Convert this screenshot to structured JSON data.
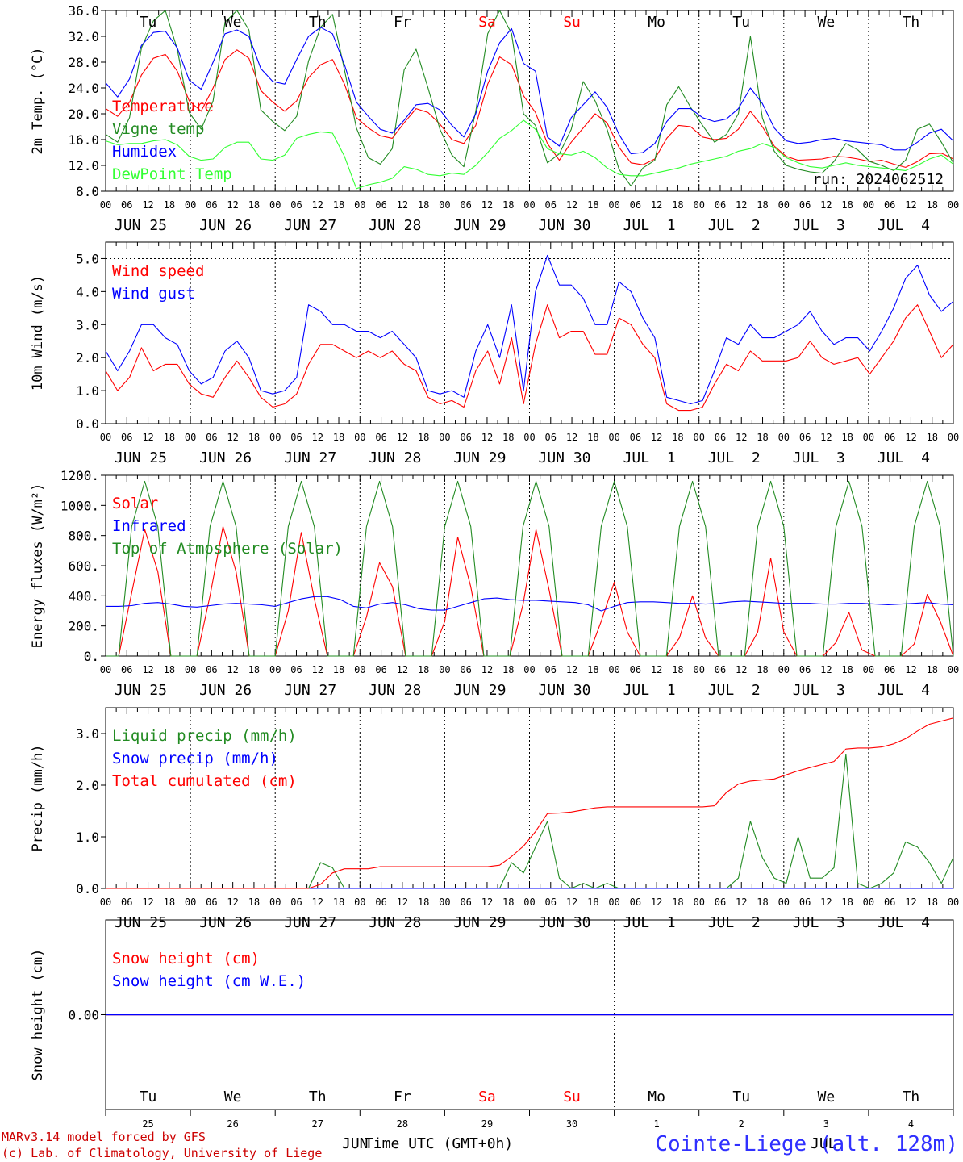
{
  "footer": {
    "model_line": "MARv3.14 model forced by GFS",
    "lab_line": "(c) Lab. of Climatology, University of Liege",
    "time_axis": "Time UTC (GMT+0h)",
    "station": "Cointe-Liege (alt. 128m)",
    "month_left": "JUN",
    "month_right": "JUL"
  },
  "days": [
    {
      "short": "Tu",
      "date": "JUN 25",
      "num": "25",
      "color": "#000000"
    },
    {
      "short": "We",
      "date": "JUN 26",
      "num": "26",
      "color": "#000000"
    },
    {
      "short": "Th",
      "date": "JUN 27",
      "num": "27",
      "color": "#000000"
    },
    {
      "short": "Fr",
      "date": "JUN 28",
      "num": "28",
      "color": "#000000"
    },
    {
      "short": "Sa",
      "date": "JUN 29",
      "num": "29",
      "color": "#ff0000"
    },
    {
      "short": "Su",
      "date": "JUN 30",
      "num": "30",
      "color": "#ff0000"
    },
    {
      "short": "Mo",
      "date": "JUL  1",
      "num": "1",
      "color": "#000000"
    },
    {
      "short": "Tu",
      "date": "JUL  2",
      "num": "2",
      "color": "#000000"
    },
    {
      "short": "We",
      "date": "JUL  3",
      "num": "3",
      "color": "#000000"
    },
    {
      "short": "Th",
      "date": "JUL  4",
      "num": "4",
      "color": "#000000"
    }
  ],
  "hour_labels": [
    "00",
    "06",
    "12",
    "18"
  ],
  "chart_data": [
    {
      "type": "line",
      "ylabel": "2m Temp. (°C)",
      "ylim": [
        8,
        36
      ],
      "yticks": [
        "8.0",
        "12.0",
        "16.0",
        "20.0",
        "24.0",
        "28.0",
        "32.0",
        "36.0"
      ],
      "annotation": "run: 2024062512",
      "x_hours_step": 6,
      "series": [
        {
          "name": "Temperature",
          "color": "#ff0000",
          "values": [
            20.8,
            19.6,
            21.8,
            26.0,
            28.6,
            29.2,
            26.6,
            22.0,
            20.4,
            24.0,
            28.4,
            29.9,
            28.6,
            23.6,
            21.8,
            20.4,
            22.0,
            25.6,
            27.6,
            28.4,
            24.6,
            19.4,
            17.8,
            16.6,
            16.2,
            18.6,
            20.8,
            20.2,
            18.4,
            16.0,
            15.4,
            18.2,
            24.6,
            28.8,
            27.6,
            22.8,
            20.2,
            15.4,
            12.8,
            15.6,
            17.8,
            20.0,
            18.6,
            14.8,
            12.4,
            12.1,
            13.0,
            16.2,
            18.2,
            18.0,
            16.4,
            16.0,
            16.2,
            17.6,
            20.4,
            18.0,
            15.0,
            13.4,
            12.8,
            12.9,
            13.0,
            13.4,
            13.3,
            13.0,
            12.6,
            12.8,
            12.2,
            11.7,
            12.6,
            13.8,
            13.9,
            13.0
          ]
        },
        {
          "name": "Vigne temp",
          "color": "#228b22",
          "values": [
            16.8,
            15.6,
            19.4,
            30.2,
            34.4,
            36.0,
            30.0,
            20.2,
            17.6,
            22.0,
            34.2,
            36.0,
            33.0,
            20.6,
            18.8,
            17.4,
            19.6,
            28.2,
            33.4,
            35.4,
            26.8,
            17.8,
            13.2,
            12.2,
            14.6,
            26.8,
            30.0,
            24.0,
            17.6,
            13.6,
            11.8,
            20.4,
            32.4,
            36.0,
            32.4,
            20.0,
            18.2,
            12.4,
            13.8,
            17.6,
            25.0,
            22.0,
            17.6,
            11.4,
            8.8,
            11.6,
            12.8,
            21.4,
            24.2,
            21.0,
            18.2,
            15.6,
            16.8,
            20.0,
            32.0,
            19.4,
            14.2,
            12.0,
            11.4,
            11.0,
            10.8,
            12.6,
            15.4,
            14.4,
            12.6,
            12.0,
            11.2,
            12.8,
            17.6,
            18.4,
            15.6,
            12.4
          ]
        },
        {
          "name": "Humidex",
          "color": "#0000ff",
          "values": [
            24.8,
            22.6,
            25.4,
            30.6,
            32.6,
            32.8,
            30.2,
            25.2,
            23.8,
            28.0,
            32.4,
            33.0,
            32.0,
            27.0,
            25.0,
            24.6,
            28.4,
            32.0,
            33.4,
            32.4,
            27.6,
            21.8,
            19.6,
            17.6,
            17.0,
            19.0,
            21.4,
            21.6,
            20.6,
            18.2,
            16.4,
            20.0,
            26.6,
            31.0,
            33.2,
            27.8,
            26.6,
            16.4,
            15.0,
            19.4,
            21.4,
            23.4,
            21.0,
            16.8,
            13.8,
            14.0,
            15.4,
            18.8,
            20.8,
            20.8,
            19.4,
            18.8,
            19.2,
            20.8,
            24.0,
            21.6,
            17.8,
            15.8,
            15.4,
            15.6,
            16.0,
            16.2,
            15.8,
            15.6,
            15.4,
            15.2,
            14.4,
            14.4,
            15.6,
            17.0,
            17.6,
            15.8
          ]
        },
        {
          "name": "DewPoint Temp",
          "color": "#33ff33",
          "values": [
            15.8,
            15.2,
            15.4,
            15.4,
            15.8,
            16.0,
            15.2,
            13.4,
            12.8,
            13.0,
            14.8,
            15.6,
            15.6,
            13.0,
            12.8,
            13.6,
            16.2,
            16.8,
            17.2,
            17.0,
            13.4,
            8.4,
            9.0,
            9.4,
            10.0,
            11.8,
            11.4,
            10.6,
            10.4,
            10.8,
            10.6,
            12.0,
            14.0,
            16.2,
            17.4,
            19.0,
            17.6,
            14.6,
            13.8,
            13.6,
            14.2,
            13.2,
            11.6,
            10.6,
            10.4,
            10.4,
            10.8,
            11.2,
            11.6,
            12.2,
            12.6,
            13.0,
            13.4,
            14.2,
            14.6,
            15.4,
            14.8,
            13.2,
            12.4,
            11.8,
            11.6,
            12.0,
            12.4,
            12.0,
            11.8,
            11.6,
            11.4,
            11.2,
            12.0,
            13.0,
            13.6,
            12.2
          ]
        }
      ]
    },
    {
      "type": "line",
      "ylabel": "10m Wind (m/s)",
      "ylim": [
        0,
        5.5
      ],
      "yticks": [
        "0.0",
        "1.0",
        "2.0",
        "3.0",
        "4.0",
        "5.0"
      ],
      "ref_line": 5.0,
      "x_hours_step": 6,
      "series": [
        {
          "name": "Wind speed",
          "color": "#ff0000",
          "values": [
            1.6,
            1.0,
            1.4,
            2.3,
            1.6,
            1.8,
            1.8,
            1.2,
            0.9,
            0.8,
            1.4,
            1.9,
            1.4,
            0.8,
            0.5,
            0.6,
            0.9,
            1.8,
            2.4,
            2.4,
            2.2,
            2.0,
            2.2,
            2.0,
            2.2,
            1.8,
            1.6,
            0.8,
            0.6,
            0.7,
            0.5,
            1.6,
            2.2,
            1.2,
            2.6,
            0.6,
            2.4,
            3.6,
            2.6,
            2.8,
            2.8,
            2.1,
            2.1,
            3.2,
            3.0,
            2.4,
            2.0,
            0.6,
            0.4,
            0.4,
            0.5,
            1.2,
            1.8,
            1.6,
            2.2,
            1.9,
            1.9,
            1.9,
            2.0,
            2.5,
            2.0,
            1.8,
            1.9,
            2.0,
            1.5,
            2.0,
            2.5,
            3.2,
            3.6,
            2.8,
            2.0,
            2.4
          ]
        },
        {
          "name": "Wind gust",
          "color": "#0000ff",
          "values": [
            2.2,
            1.6,
            2.2,
            3.0,
            3.0,
            2.6,
            2.4,
            1.6,
            1.2,
            1.4,
            2.2,
            2.5,
            2.0,
            1.0,
            0.9,
            1.0,
            1.4,
            3.6,
            3.4,
            3.0,
            3.0,
            2.8,
            2.8,
            2.6,
            2.8,
            2.4,
            2.0,
            1.0,
            0.9,
            1.0,
            0.8,
            2.2,
            3.0,
            2.0,
            3.6,
            1.0,
            4.0,
            5.1,
            4.2,
            4.2,
            3.8,
            3.0,
            3.0,
            4.3,
            4.0,
            3.2,
            2.6,
            0.8,
            0.7,
            0.6,
            0.7,
            1.6,
            2.6,
            2.4,
            3.0,
            2.6,
            2.6,
            2.8,
            3.0,
            3.4,
            2.8,
            2.4,
            2.6,
            2.6,
            2.2,
            2.8,
            3.5,
            4.4,
            4.8,
            3.9,
            3.4,
            3.7
          ]
        }
      ]
    },
    {
      "type": "line",
      "ylabel": "Energy fluxes (W/m²)",
      "ylim": [
        0,
        1200
      ],
      "yticks": [
        "0.",
        "200.",
        "400.",
        "600.",
        "800.",
        "1000.",
        "1200."
      ],
      "x_hours_step": 6,
      "series": [
        {
          "name": "Solar",
          "color": "#ff0000",
          "values": [
            0,
            0,
            420,
            840,
            560,
            0,
            0,
            0,
            400,
            860,
            560,
            0,
            0,
            0,
            300,
            820,
            380,
            0,
            0,
            0,
            260,
            620,
            460,
            0,
            0,
            0,
            230,
            790,
            460,
            0,
            0,
            0,
            340,
            840,
            440,
            0,
            0,
            0,
            230,
            490,
            160,
            0,
            0,
            0,
            120,
            400,
            120,
            0,
            0,
            0,
            160,
            650,
            160,
            0,
            0,
            0,
            90,
            290,
            40,
            0,
            0,
            0,
            80,
            410,
            230,
            0
          ]
        },
        {
          "name": "Infrared",
          "color": "#0000ff",
          "values": [
            330,
            330,
            335,
            350,
            355,
            345,
            330,
            325,
            335,
            345,
            350,
            345,
            340,
            330,
            355,
            380,
            395,
            395,
            375,
            330,
            320,
            345,
            355,
            340,
            315,
            305,
            305,
            330,
            355,
            380,
            385,
            375,
            370,
            370,
            365,
            360,
            355,
            340,
            300,
            330,
            355,
            360,
            360,
            355,
            350,
            350,
            345,
            350,
            360,
            365,
            360,
            355,
            350,
            350,
            350,
            345,
            345,
            350,
            350,
            345,
            340,
            345,
            350,
            355,
            345,
            340
          ]
        },
        {
          "name": "Top of Atmosphere (Solar)",
          "color": "#228b22",
          "values": [
            0,
            0,
            860,
            1160,
            860,
            0,
            0,
            0,
            860,
            1160,
            860,
            0,
            0,
            0,
            860,
            1160,
            860,
            0,
            0,
            0,
            860,
            1160,
            860,
            0,
            0,
            0,
            860,
            1160,
            860,
            0,
            0,
            0,
            860,
            1160,
            860,
            0,
            0,
            0,
            860,
            1160,
            860,
            0,
            0,
            0,
            860,
            1160,
            860,
            0,
            0,
            0,
            860,
            1160,
            860,
            0,
            0,
            0,
            860,
            1160,
            860,
            0,
            0,
            0,
            860,
            1160,
            860,
            0
          ]
        }
      ]
    },
    {
      "type": "line",
      "ylabel": "Precip (mm/h)",
      "ylim": [
        0,
        3.5
      ],
      "yticks": [
        "0.0",
        "1.0",
        "2.0",
        "3.0"
      ],
      "x_hours_step": 6,
      "series": [
        {
          "name": "Liquid precip (mm/h)",
          "color": "#228b22",
          "values": [
            0,
            0,
            0,
            0,
            0,
            0,
            0,
            0,
            0,
            0,
            0,
            0,
            0,
            0,
            0,
            0,
            0,
            0,
            0.5,
            0.4,
            0,
            0,
            0,
            0,
            0,
            0,
            0,
            0,
            0,
            0,
            0,
            0,
            0,
            0,
            0.5,
            0.3,
            0.8,
            1.3,
            0.2,
            0,
            0.1,
            0,
            0.1,
            0,
            0,
            0,
            0,
            0,
            0,
            0,
            0,
            0,
            0,
            0.2,
            1.3,
            0.6,
            0.2,
            0.1,
            1.0,
            0.2,
            0.2,
            0.4,
            2.6,
            0.1,
            0,
            0.1,
            0.3,
            0.9,
            0.8,
            0.5,
            0.1,
            0.6
          ]
        },
        {
          "name": "Snow precip (mm/h)",
          "color": "#0000ff",
          "values": [
            0,
            0,
            0,
            0,
            0,
            0,
            0,
            0,
            0,
            0,
            0,
            0,
            0,
            0,
            0,
            0,
            0,
            0,
            0,
            0,
            0,
            0,
            0,
            0,
            0,
            0,
            0,
            0,
            0,
            0,
            0,
            0,
            0,
            0,
            0,
            0,
            0,
            0,
            0,
            0,
            0,
            0,
            0,
            0,
            0,
            0,
            0,
            0,
            0,
            0,
            0,
            0,
            0,
            0,
            0,
            0,
            0,
            0,
            0,
            0,
            0,
            0,
            0,
            0,
            0,
            0,
            0,
            0,
            0,
            0,
            0,
            0
          ]
        },
        {
          "name": "Total cumulated (cm)",
          "color": "#ff0000",
          "values": [
            0,
            0,
            0,
            0,
            0,
            0,
            0,
            0,
            0,
            0,
            0,
            0,
            0,
            0,
            0,
            0,
            0,
            0,
            0.08,
            0.3,
            0.38,
            0.38,
            0.38,
            0.42,
            0.42,
            0.42,
            0.42,
            0.42,
            0.42,
            0.42,
            0.42,
            0.42,
            0.42,
            0.45,
            0.62,
            0.82,
            1.1,
            1.45,
            1.46,
            1.48,
            1.52,
            1.56,
            1.58,
            1.58,
            1.58,
            1.58,
            1.58,
            1.58,
            1.58,
            1.58,
            1.58,
            1.6,
            1.86,
            2.02,
            2.08,
            2.1,
            2.12,
            2.2,
            2.28,
            2.34,
            2.4,
            2.46,
            2.7,
            2.72,
            2.72,
            2.74,
            2.8,
            2.9,
            3.05,
            3.18,
            3.24,
            3.3
          ]
        }
      ]
    },
    {
      "type": "line",
      "ylabel": "Snow height (cm)",
      "ylim": [
        -1,
        1
      ],
      "yticks": [
        "0.00"
      ],
      "x_hours_step": 6,
      "series": [
        {
          "name": "Snow height (cm)",
          "color": "#ff0000",
          "values": [
            0,
            0
          ]
        },
        {
          "name": "Snow height (cm W.E.)",
          "color": "#0000ff",
          "values": [
            0,
            0
          ]
        }
      ]
    }
  ]
}
